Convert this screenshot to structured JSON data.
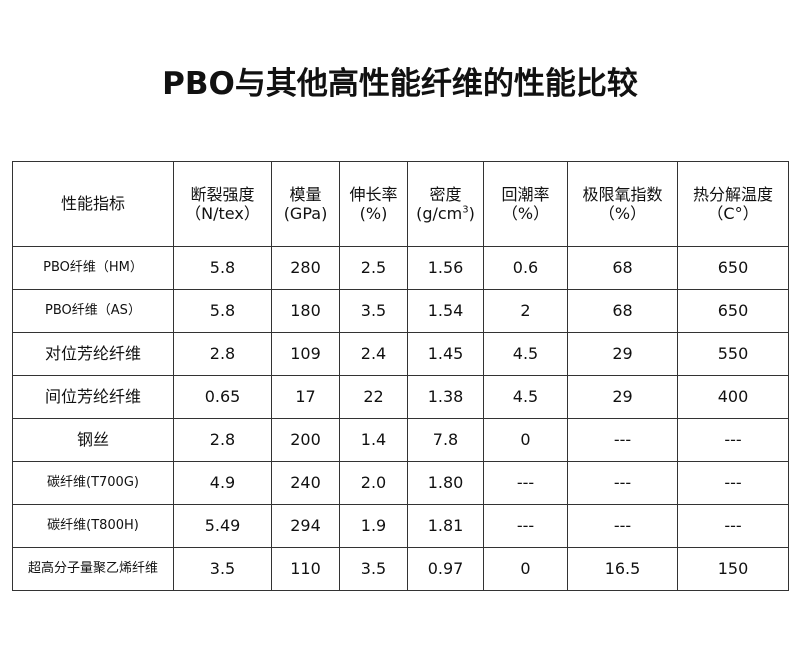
{
  "title": "PBO与其他高性能纤维的性能比较",
  "table": {
    "headers": [
      {
        "line1": "性能指标",
        "line2": ""
      },
      {
        "line1": "断裂强度",
        "line2": "（N/tex）"
      },
      {
        "line1": "模量",
        "line2": "(GPa)"
      },
      {
        "line1": "伸长率",
        "line2": "(%)"
      },
      {
        "line1": "密度",
        "line2": "(g/cm",
        "sup": "3",
        "tail": ")"
      },
      {
        "line1": "回潮率",
        "line2": "（%）"
      },
      {
        "line1": "极限氧指数",
        "line2": "（%）"
      },
      {
        "line1": "热分解温度",
        "line2": "（C°）"
      }
    ],
    "rows": [
      [
        "PBO纤维（HM）",
        "5.8",
        "280",
        "2.5",
        "1.56",
        "0.6",
        "68",
        "650"
      ],
      [
        "PBO纤维（AS）",
        "5.8",
        "180",
        "3.5",
        "1.54",
        "2",
        "68",
        "650"
      ],
      [
        "对位芳纶纤维",
        "2.8",
        "109",
        "2.4",
        "1.45",
        "4.5",
        "29",
        "550"
      ],
      [
        "间位芳纶纤维",
        "0.65",
        "17",
        "22",
        "1.38",
        "4.5",
        "29",
        "400"
      ],
      [
        "钢丝",
        "2.8",
        "200",
        "1.4",
        "7.8",
        "0",
        "---",
        "---"
      ],
      [
        "碳纤维(T700G)",
        "4.9",
        "240",
        "2.0",
        "1.80",
        "---",
        "---",
        "---"
      ],
      [
        "碳纤维(T800H)",
        "5.49",
        "294",
        "1.9",
        "1.81",
        "---",
        "---",
        "---"
      ],
      [
        "超高分子量聚乙烯纤维",
        "3.5",
        "110",
        "3.5",
        "0.97",
        "0",
        "16.5",
        "150"
      ]
    ]
  }
}
